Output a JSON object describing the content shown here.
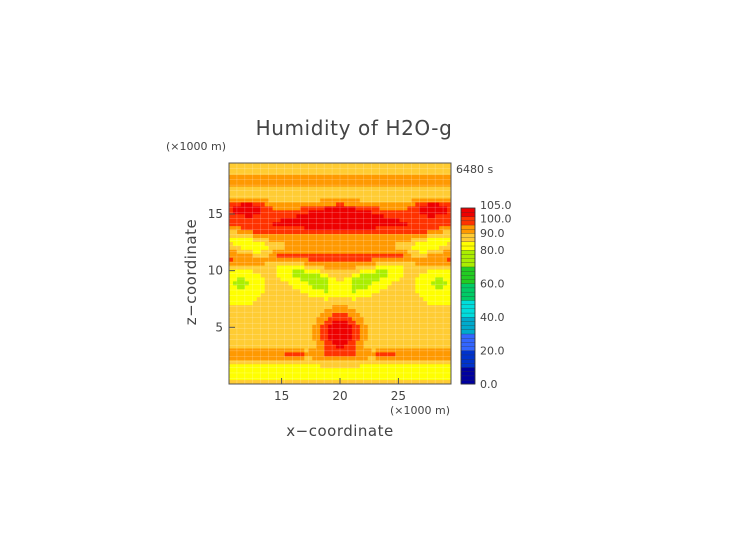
{
  "chart_data": {
    "type": "heatmap",
    "title": "Humidity of H2O-g",
    "time_label": "6480 s",
    "xlabel": "x−coordinate",
    "ylabel": "z−coordinate",
    "x_unit": "(×1000 m)",
    "y_unit": "(×1000 m)",
    "xlim": [
      10.5,
      29.5
    ],
    "ylim": [
      0.0,
      19.5
    ],
    "x_ticks": [
      "15",
      "20",
      "25"
    ],
    "x_tick_values": [
      15,
      20,
      25
    ],
    "y_ticks": [
      "5",
      "10",
      "15"
    ],
    "y_tick_values": [
      5,
      10,
      15
    ],
    "colorbar": {
      "labels": [
        "105.0",
        "100.0",
        "90.0",
        "80.0",
        "60.0",
        "40.0",
        "20.0",
        "0.0"
      ],
      "label_values": [
        105,
        100,
        90,
        80,
        60,
        40,
        20,
        0
      ],
      "range": [
        0,
        105
      ],
      "stops": [
        {
          "v": 0,
          "color": "#0000a0"
        },
        {
          "v": 10,
          "color": "#0033cc"
        },
        {
          "v": 20,
          "color": "#3366ff"
        },
        {
          "v": 30,
          "color": "#00aacc"
        },
        {
          "v": 40,
          "color": "#00dddd"
        },
        {
          "v": 50,
          "color": "#00cc66"
        },
        {
          "v": 60,
          "color": "#22cc22"
        },
        {
          "v": 70,
          "color": "#aaee00"
        },
        {
          "v": 80,
          "color": "#ffff00"
        },
        {
          "v": 85,
          "color": "#ffcc33"
        },
        {
          "v": 90,
          "color": "#ff9900"
        },
        {
          "v": 95,
          "color": "#ff3300"
        },
        {
          "v": 100,
          "color": "#ee0000"
        },
        {
          "v": 105,
          "color": "#ffc0cb"
        }
      ]
    },
    "grid": true
  }
}
